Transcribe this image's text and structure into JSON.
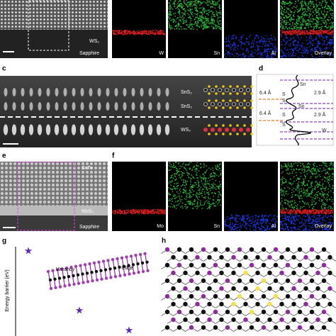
{
  "panel_a": {
    "label_ws2": "WS₂",
    "label_sapphire": "Sapphire"
  },
  "panel_b": {
    "channels": [
      "W",
      "Sn",
      "Al",
      "Overlay"
    ]
  },
  "panel_c": {
    "label": "c",
    "layers": [
      "SnS₂",
      "SnS₂",
      "WS₂"
    ]
  },
  "panel_d": {
    "label": "d",
    "atoms": [
      "Sn",
      "S",
      "S",
      "Sn",
      "S",
      "S",
      "W"
    ],
    "distances": [
      "6.4 Å",
      "2.9 Å",
      "6.4 Å",
      "2.9 Å"
    ]
  },
  "panel_e": {
    "label": "e",
    "layers": [
      "SnTe",
      "MoS₂",
      "Sapphire"
    ]
  },
  "panel_f": {
    "label": "f",
    "channels": [
      "Mo",
      "Sn",
      "Al",
      "Overlay"
    ]
  },
  "panel_g": {
    "label": "g",
    "y_axis_label": "Energy barrier (eV)",
    "annotations": [
      "Vacancy",
      "Edge"
    ]
  },
  "panel_h": {
    "label": "h"
  }
}
